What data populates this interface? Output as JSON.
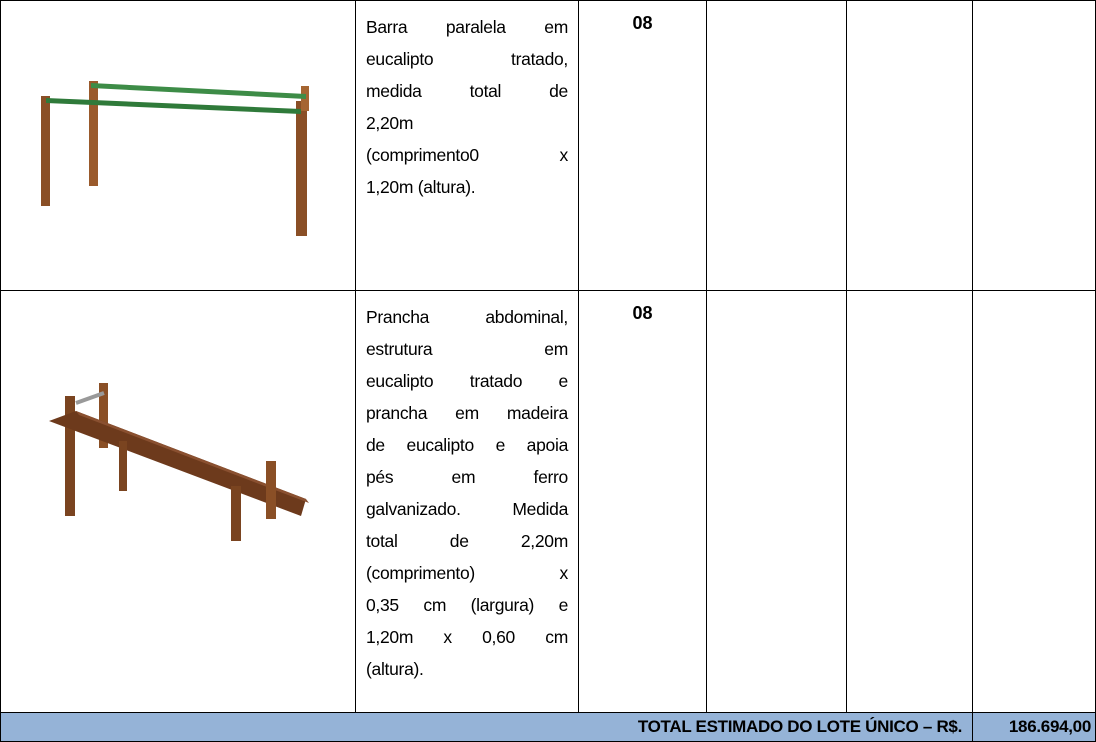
{
  "table": {
    "rows": [
      {
        "description": [
          "Barra paralela em",
          "eucalipto tratado,",
          "medida total de",
          "2,20m",
          "(comprimento0 x",
          "1,20m (altura)."
        ],
        "quantity": "08"
      },
      {
        "description": [
          "Prancha abdominal,",
          "estrutura em",
          "eucalipto tratado e",
          "prancha em madeira",
          "de eucalipto e apoia",
          "pés em ferro",
          "galvanizado. Medida",
          "total de 2,20m",
          "(comprimento) x",
          "0,35 cm (largura) e",
          "1,20m x 0,60 cm",
          "(altura)."
        ],
        "quantity": "08"
      }
    ],
    "total": {
      "label": "TOTAL ESTIMADO DO LOTE ÚNICO – R$.",
      "value": "186.694,00"
    }
  }
}
